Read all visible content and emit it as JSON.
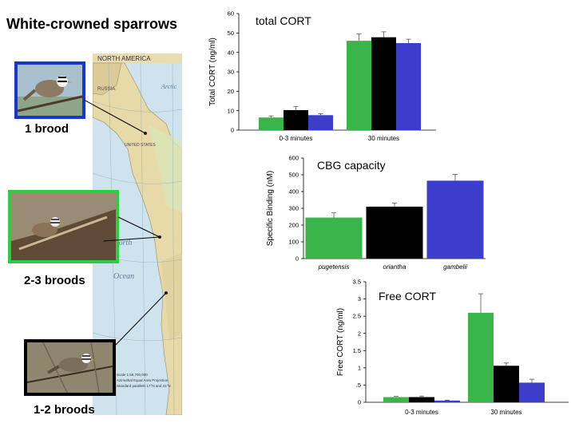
{
  "slide": {
    "title": "White-crowned sparrows",
    "captions": {
      "one": "1 brood",
      "two": "2-3 broods",
      "three": "1-2 broods"
    },
    "map_labels": {
      "title": "NORTH AMERICA",
      "russia": "RUSSIA",
      "arctic": "Arctic",
      "north": "North",
      "ocean": "Ocean",
      "us": "UNITED STATES",
      "scale": "Scale 1:58,700,000",
      "projection": "Azimuthal Equal Area Projection",
      "parallels": "Standard parallels 17°N and 41°N"
    }
  },
  "colors": {
    "green": "#3ab54a",
    "black": "#000000",
    "blue": "#3d3dcc"
  },
  "chart_data": [
    {
      "type": "bar",
      "title": "total CORT",
      "ylabel": "Total CORT (ng/ml)",
      "xlabel": "",
      "ylim": [
        0,
        60
      ],
      "yticks": [
        "0",
        "10",
        "20",
        "30",
        "40",
        "50",
        "60"
      ],
      "categories": [
        "0-3 minutes",
        "30 minutes"
      ],
      "series": [
        {
          "name": "green",
          "values": [
            6.5,
            46
          ],
          "errors": [
            0.8,
            3.5
          ]
        },
        {
          "name": "black",
          "values": [
            10.3,
            47.8
          ],
          "errors": [
            1.8,
            2.8
          ]
        },
        {
          "name": "blue",
          "values": [
            7.7,
            44.8
          ],
          "errors": [
            0.7,
            2.0
          ]
        }
      ]
    },
    {
      "type": "bar",
      "title": "CBG capacity",
      "ylabel": "Specific Binding (nM)",
      "xlabel": "",
      "ylim": [
        0,
        600
      ],
      "yticks": [
        "0",
        "100",
        "200",
        "300",
        "400",
        "500",
        "600"
      ],
      "categories": [
        "pugetensis",
        "oriantha",
        "gambelii"
      ],
      "values": [
        245,
        310,
        465
      ],
      "errors": [
        28,
        22,
        38
      ],
      "bar_colors": [
        "green",
        "black",
        "blue"
      ]
    },
    {
      "type": "bar",
      "title": "Free CORT",
      "ylabel": "Free CORT (ng/ml)",
      "xlabel": "",
      "ylim": [
        0,
        3.5
      ],
      "yticks": [
        "0",
        ".5",
        "1",
        "1.5",
        "2",
        "2.5",
        "3",
        "3.5"
      ],
      "categories": [
        "0-3 minutes",
        "30 minutes"
      ],
      "series": [
        {
          "name": "green",
          "values": [
            0.15,
            2.6
          ],
          "errors": [
            0.02,
            0.55
          ]
        },
        {
          "name": "black",
          "values": [
            0.15,
            1.06
          ],
          "errors": [
            0.03,
            0.08
          ]
        },
        {
          "name": "blue",
          "values": [
            0.05,
            0.57
          ],
          "errors": [
            0.01,
            0.1
          ]
        }
      ]
    }
  ]
}
